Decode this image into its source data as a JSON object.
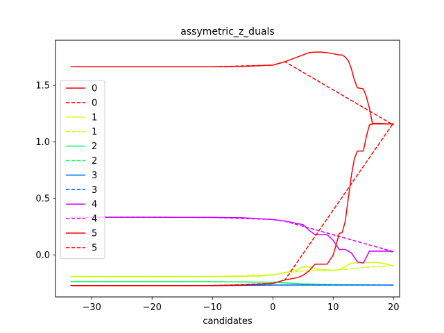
{
  "chart_data": {
    "type": "line",
    "title": "assymetric_z_duals",
    "xlabel": "candidates",
    "ylabel": "",
    "xlim": [
      -36,
      21
    ],
    "ylim": [
      -0.37,
      1.9
    ],
    "xticks": [
      -30,
      -20,
      -10,
      0,
      10,
      20
    ],
    "yticks": [
      0.0,
      0.5,
      1.0,
      1.5
    ],
    "xtick_labels": [
      "−30",
      "−20",
      "−10",
      "0",
      "10",
      "20"
    ],
    "ytick_labels": [
      "0.0",
      "0.5",
      "1.0",
      "1.5"
    ],
    "grid": false,
    "legend_position": "center-left",
    "series": [
      {
        "name": "0",
        "style": "solid",
        "color": "#ff0000",
        "x": [
          -33.5,
          -20,
          -10,
          -5,
          0,
          2,
          3,
          4,
          5,
          6,
          7,
          8,
          9,
          10,
          11,
          11.5,
          12,
          12.5,
          13,
          13.5,
          14,
          15,
          15.5,
          16,
          16.5,
          17,
          18,
          19,
          20
        ],
        "y": [
          1.665,
          1.665,
          1.665,
          1.668,
          1.68,
          1.71,
          1.73,
          1.75,
          1.77,
          1.79,
          1.795,
          1.795,
          1.79,
          1.78,
          1.77,
          1.77,
          1.75,
          1.72,
          1.65,
          1.55,
          1.48,
          1.47,
          1.4,
          1.3,
          1.165,
          1.165,
          1.165,
          1.16,
          1.16
        ]
      },
      {
        "name": "0",
        "style": "dashed",
        "color": "#ff0000",
        "x": [
          -33.5,
          -20,
          -10,
          0,
          2,
          20
        ],
        "y": [
          1.665,
          1.665,
          1.665,
          1.68,
          1.71,
          1.15
        ]
      },
      {
        "name": "1",
        "style": "solid",
        "color": "#ccff00",
        "x": [
          -33.5,
          -20,
          -10,
          -2,
          0,
          2,
          4,
          5,
          6,
          7,
          8,
          9,
          10,
          11,
          12,
          13,
          14,
          15,
          16,
          17,
          18,
          20
        ],
        "y": [
          -0.19,
          -0.19,
          -0.19,
          -0.185,
          -0.175,
          -0.155,
          -0.13,
          -0.105,
          -0.105,
          -0.12,
          -0.13,
          -0.13,
          -0.135,
          -0.13,
          -0.1,
          -0.07,
          -0.07,
          -0.07,
          -0.065,
          -0.065,
          -0.07,
          -0.095
        ]
      },
      {
        "name": "1",
        "style": "dashed",
        "color": "#ccff00",
        "x": [
          -33.5,
          -20,
          -10,
          0,
          2,
          5,
          10,
          15,
          20
        ],
        "y": [
          -0.19,
          -0.19,
          -0.19,
          -0.175,
          -0.155,
          -0.14,
          -0.135,
          -0.11,
          -0.09
        ]
      },
      {
        "name": "2",
        "style": "solid",
        "color": "#00ff66",
        "x": [
          -33.5,
          -20,
          -10,
          0,
          5,
          10,
          20
        ],
        "y": [
          -0.235,
          -0.235,
          -0.235,
          -0.24,
          -0.255,
          -0.26,
          -0.265
        ]
      },
      {
        "name": "2",
        "style": "dashed",
        "color": "#00ff66",
        "x": [
          -33.5,
          -20,
          -10,
          0,
          5,
          10,
          20
        ],
        "y": [
          -0.235,
          -0.235,
          -0.235,
          -0.24,
          -0.255,
          -0.26,
          -0.265
        ]
      },
      {
        "name": "3",
        "style": "solid",
        "color": "#0066ff",
        "x": [
          -33.5,
          -20,
          -10,
          0,
          5,
          10,
          20
        ],
        "y": [
          -0.27,
          -0.27,
          -0.27,
          -0.265,
          -0.265,
          -0.265,
          -0.265
        ]
      },
      {
        "name": "3",
        "style": "dashed",
        "color": "#0066ff",
        "x": [
          -33.5,
          -20,
          -10,
          0,
          5,
          10,
          20
        ],
        "y": [
          -0.27,
          -0.27,
          -0.27,
          -0.265,
          -0.265,
          -0.265,
          -0.265
        ]
      },
      {
        "name": "4",
        "style": "solid",
        "color": "#cc00ff",
        "x": [
          -33.5,
          -20,
          -10,
          -5,
          0,
          2,
          4,
          5,
          6,
          7,
          8,
          9,
          10,
          11,
          12,
          13,
          14,
          15,
          16,
          17,
          18,
          19,
          20
        ],
        "y": [
          0.335,
          0.335,
          0.333,
          0.33,
          0.315,
          0.3,
          0.28,
          0.27,
          0.22,
          0.18,
          0.18,
          0.18,
          0.13,
          0.05,
          0.05,
          0.02,
          -0.06,
          -0.07,
          0.035,
          0.035,
          0.035,
          0.035,
          0.03
        ]
      },
      {
        "name": "4",
        "style": "dashed",
        "color": "#cc00ff",
        "x": [
          -33.5,
          -20,
          -10,
          0,
          2,
          20
        ],
        "y": [
          0.335,
          0.335,
          0.333,
          0.315,
          0.3,
          0.03
        ]
      },
      {
        "name": "5",
        "style": "solid",
        "color": "#ff0000",
        "x": [
          -33.5,
          -20,
          -10,
          -5,
          0,
          2,
          4,
          5,
          6,
          7,
          8,
          9,
          10,
          11,
          11.5,
          12,
          12.5,
          13,
          13.5,
          14,
          15,
          15.5,
          16,
          16.5,
          17,
          18,
          20
        ],
        "y": [
          -0.27,
          -0.27,
          -0.27,
          -0.265,
          -0.25,
          -0.22,
          -0.2,
          -0.18,
          -0.14,
          -0.08,
          -0.08,
          -0.08,
          0.0,
          0.19,
          0.2,
          0.3,
          0.5,
          0.7,
          0.85,
          0.92,
          0.92,
          1.05,
          1.15,
          1.16,
          1.16,
          1.16,
          1.16
        ]
      },
      {
        "name": "5",
        "style": "dashed",
        "color": "#ff0000",
        "x": [
          -33.5,
          -20,
          -10,
          0,
          2,
          20
        ],
        "y": [
          -0.27,
          -0.27,
          -0.27,
          -0.25,
          -0.22,
          1.17
        ]
      }
    ]
  }
}
